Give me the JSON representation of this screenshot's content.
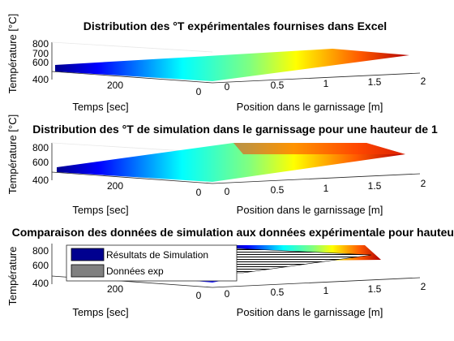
{
  "figure": {
    "panels": [
      {
        "title": "Distribution des °T expérimentales fournises dans Excel",
        "zlabel": "Température [°C]",
        "xlabel": "Temps [sec]",
        "ylabel": "Position dans le garnissage [m]",
        "x_ticks": [
          "200",
          "0"
        ],
        "y_ticks": [
          "0",
          "0.5",
          "1",
          "1.5",
          "2"
        ],
        "z_ticks": [
          "800",
          "700",
          "600",
          "400"
        ]
      },
      {
        "title": "Distribution des °T de simulation dans le garnissage pour une hauteur de 1",
        "zlabel": "Température [°C]",
        "xlabel": "Temps [sec]",
        "ylabel": "Position dans le garnissage [m]",
        "x_ticks": [
          "200",
          "0"
        ],
        "y_ticks": [
          "0",
          "0.5",
          "1",
          "1.5",
          "2"
        ],
        "z_ticks": [
          "800",
          "600",
          "400"
        ]
      },
      {
        "title": "Comparaison des données de simulation aux données expérimentale pour hauteur",
        "zlabel": "Température",
        "xlabel": "Temps [sec]",
        "ylabel": "Position dans le garnissage [m]",
        "x_ticks": [
          "200",
          "0"
        ],
        "y_ticks": [
          "0",
          "0.5",
          "1",
          "1.5",
          "2"
        ],
        "z_ticks": [
          "800",
          "600",
          "400"
        ],
        "legend": [
          "Résultats de Simulation",
          "Données exp"
        ]
      }
    ],
    "colors": {
      "simulation": "#00008f",
      "experimental": "#808080"
    }
  },
  "chart_data": [
    {
      "type": "surface",
      "title": "Distribution des °T expérimentales fournises dans Excel",
      "xlabel": "Temps [sec]",
      "ylabel": "Position dans le garnissage [m]",
      "zlabel": "Température [°C]",
      "xlim": [
        0,
        300
      ],
      "ylim": [
        0,
        2
      ],
      "zlim": [
        400,
        850
      ],
      "colormap": "jet",
      "x": [
        0,
        300
      ],
      "y": [
        0,
        2
      ],
      "z": [
        [
          450,
          820
        ],
        [
          450,
          820
        ]
      ]
    },
    {
      "type": "surface",
      "title": "Distribution des °T de simulation dans le garnissage pour une hauteur de 1",
      "xlabel": "Temps [sec]",
      "ylabel": "Position dans le garnissage [m]",
      "zlabel": "Température [°C]",
      "xlim": [
        0,
        300
      ],
      "ylim": [
        0,
        2
      ],
      "zlim": [
        400,
        850
      ],
      "colormap": "jet",
      "x": [
        0,
        300
      ],
      "y": [
        0,
        2
      ],
      "z": [
        [
          450,
          830
        ],
        [
          450,
          830
        ]
      ]
    },
    {
      "type": "surface",
      "title": "Comparaison des données de simulation aux données expérimentale pour hauteur",
      "xlabel": "Temps [sec]",
      "ylabel": "Position dans le garnissage [m]",
      "zlabel": "Température",
      "xlim": [
        0,
        300
      ],
      "ylim": [
        0,
        2
      ],
      "zlim": [
        400,
        850
      ],
      "legend_position": "top-left",
      "series": [
        {
          "name": "Résultats de Simulation",
          "color": "#00008f"
        },
        {
          "name": "Données exp",
          "color": "#808080"
        }
      ]
    }
  ]
}
